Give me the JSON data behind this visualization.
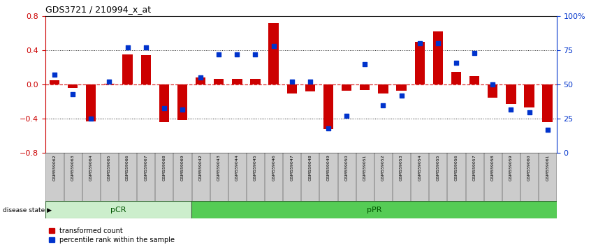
{
  "title": "GDS3721 / 210994_x_at",
  "samples": [
    "GSM559062",
    "GSM559063",
    "GSM559064",
    "GSM559065",
    "GSM559066",
    "GSM559067",
    "GSM559068",
    "GSM559069",
    "GSM559042",
    "GSM559043",
    "GSM559044",
    "GSM559045",
    "GSM559046",
    "GSM559047",
    "GSM559048",
    "GSM559049",
    "GSM559050",
    "GSM559051",
    "GSM559052",
    "GSM559053",
    "GSM559054",
    "GSM559055",
    "GSM559056",
    "GSM559057",
    "GSM559058",
    "GSM559059",
    "GSM559060",
    "GSM559061"
  ],
  "bar_values": [
    0.05,
    -0.04,
    -0.43,
    0.01,
    0.35,
    0.34,
    -0.44,
    -0.41,
    0.08,
    0.07,
    0.07,
    0.07,
    0.72,
    -0.1,
    -0.08,
    -0.52,
    -0.07,
    -0.06,
    -0.1,
    -0.07,
    0.5,
    0.62,
    0.15,
    0.1,
    -0.15,
    -0.23,
    -0.27,
    -0.44
  ],
  "percentile_values": [
    57,
    43,
    25,
    52,
    77,
    77,
    33,
    32,
    55,
    72,
    72,
    72,
    78,
    52,
    52,
    18,
    27,
    65,
    35,
    42,
    80,
    80,
    66,
    73,
    50,
    32,
    30,
    17
  ],
  "pCR_count": 8,
  "pPR_count": 20,
  "ylim_left": [
    -0.8,
    0.8
  ],
  "yticks_left": [
    -0.8,
    -0.4,
    0.0,
    0.4,
    0.8
  ],
  "yticks_right": [
    0,
    25,
    50,
    75,
    100
  ],
  "bar_color": "#cc0000",
  "scatter_color": "#0033cc",
  "pCR_facecolor": "#cceecc",
  "pPR_facecolor": "#55cc55",
  "sample_box_color": "#cccccc",
  "group_text_color": "#005500",
  "zero_line_color": "#dd3333",
  "dotted_line_color": "#222222",
  "legend_labels": [
    "transformed count",
    "percentile rank within the sample"
  ]
}
